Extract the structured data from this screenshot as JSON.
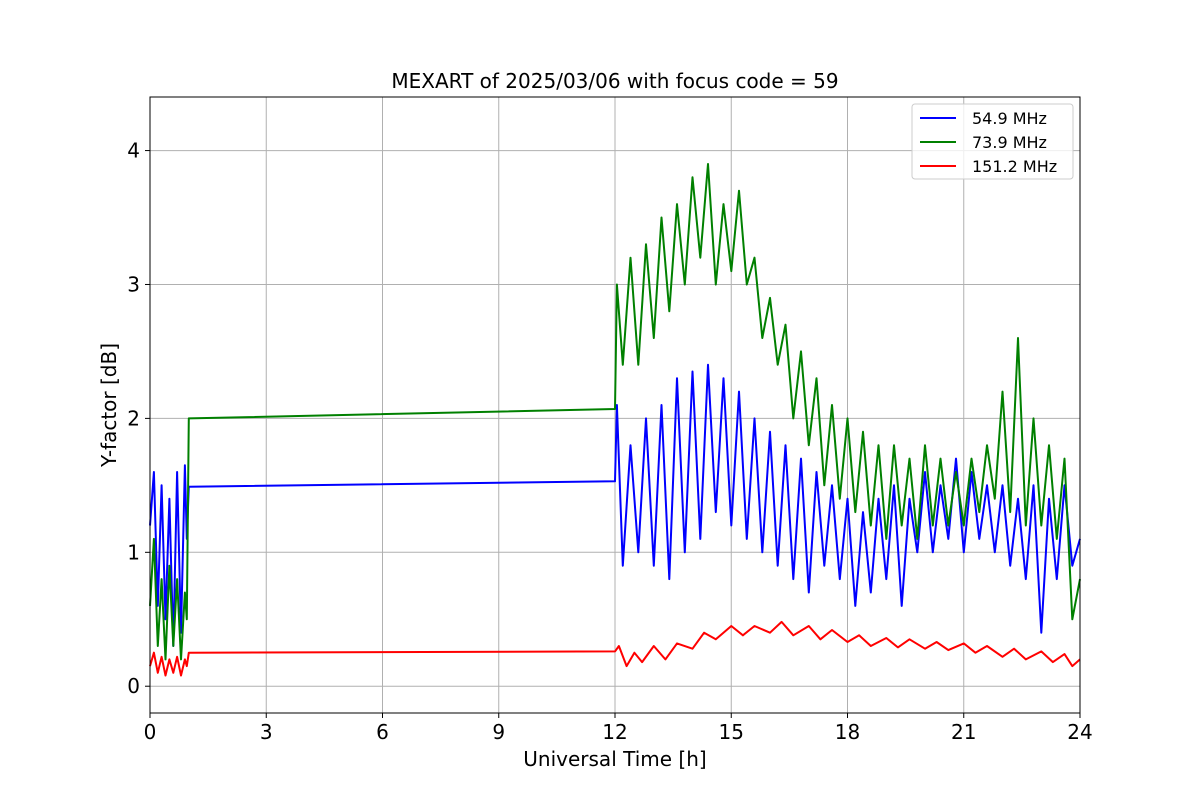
{
  "chart_data": {
    "type": "line",
    "title": "MEXART of 2025/03/06 with focus code = 59",
    "xlabel": "Universal Time [h]",
    "ylabel": "Y-factor [dB]",
    "xlim": [
      0,
      24
    ],
    "ylim": [
      -0.2,
      4.4
    ],
    "xticks": [
      0,
      3,
      6,
      9,
      12,
      15,
      18,
      21,
      24
    ],
    "yticks": [
      0,
      1,
      2,
      3,
      4
    ],
    "grid": true,
    "legend_position": "top-right",
    "series": [
      {
        "name": "54.9 MHz",
        "color": "#0000ff",
        "points": [
          [
            0.0,
            1.2
          ],
          [
            0.1,
            1.6
          ],
          [
            0.2,
            0.6
          ],
          [
            0.3,
            1.5
          ],
          [
            0.4,
            0.5
          ],
          [
            0.5,
            1.4
          ],
          [
            0.6,
            0.3
          ],
          [
            0.7,
            1.6
          ],
          [
            0.8,
            0.4
          ],
          [
            0.9,
            1.65
          ],
          [
            0.95,
            1.1
          ],
          [
            1.0,
            1.49
          ],
          [
            12.0,
            1.53
          ],
          [
            12.05,
            2.1
          ],
          [
            12.2,
            0.9
          ],
          [
            12.4,
            1.8
          ],
          [
            12.6,
            1.0
          ],
          [
            12.8,
            2.0
          ],
          [
            13.0,
            0.9
          ],
          [
            13.2,
            2.1
          ],
          [
            13.4,
            0.8
          ],
          [
            13.6,
            2.3
          ],
          [
            13.8,
            1.0
          ],
          [
            14.0,
            2.35
          ],
          [
            14.2,
            1.1
          ],
          [
            14.4,
            2.4
          ],
          [
            14.6,
            1.3
          ],
          [
            14.8,
            2.3
          ],
          [
            15.0,
            1.2
          ],
          [
            15.2,
            2.2
          ],
          [
            15.4,
            1.1
          ],
          [
            15.6,
            2.0
          ],
          [
            15.8,
            1.0
          ],
          [
            16.0,
            1.9
          ],
          [
            16.2,
            0.9
          ],
          [
            16.4,
            1.8
          ],
          [
            16.6,
            0.8
          ],
          [
            16.8,
            1.7
          ],
          [
            17.0,
            0.7
          ],
          [
            17.2,
            1.6
          ],
          [
            17.4,
            0.9
          ],
          [
            17.6,
            1.5
          ],
          [
            17.8,
            0.8
          ],
          [
            18.0,
            1.4
          ],
          [
            18.2,
            0.6
          ],
          [
            18.4,
            1.3
          ],
          [
            18.6,
            0.7
          ],
          [
            18.8,
            1.4
          ],
          [
            19.0,
            0.8
          ],
          [
            19.2,
            1.5
          ],
          [
            19.4,
            0.6
          ],
          [
            19.6,
            1.4
          ],
          [
            19.8,
            1.0
          ],
          [
            20.0,
            1.6
          ],
          [
            20.2,
            1.0
          ],
          [
            20.4,
            1.5
          ],
          [
            20.6,
            1.1
          ],
          [
            20.8,
            1.7
          ],
          [
            21.0,
            1.0
          ],
          [
            21.2,
            1.6
          ],
          [
            21.4,
            1.1
          ],
          [
            21.6,
            1.5
          ],
          [
            21.8,
            1.0
          ],
          [
            22.0,
            1.5
          ],
          [
            22.2,
            0.9
          ],
          [
            22.4,
            1.4
          ],
          [
            22.6,
            0.8
          ],
          [
            22.8,
            1.5
          ],
          [
            23.0,
            0.4
          ],
          [
            23.2,
            1.4
          ],
          [
            23.4,
            0.8
          ],
          [
            23.6,
            1.5
          ],
          [
            23.8,
            0.9
          ],
          [
            24.0,
            1.1
          ]
        ]
      },
      {
        "name": "73.9 MHz",
        "color": "#008000",
        "points": [
          [
            0.0,
            0.6
          ],
          [
            0.1,
            1.1
          ],
          [
            0.2,
            0.3
          ],
          [
            0.3,
            0.8
          ],
          [
            0.4,
            0.2
          ],
          [
            0.5,
            0.9
          ],
          [
            0.6,
            0.3
          ],
          [
            0.7,
            0.8
          ],
          [
            0.8,
            0.2
          ],
          [
            0.9,
            0.7
          ],
          [
            0.95,
            0.5
          ],
          [
            1.0,
            2.0
          ],
          [
            12.0,
            2.07
          ],
          [
            12.05,
            3.0
          ],
          [
            12.2,
            2.4
          ],
          [
            12.4,
            3.2
          ],
          [
            12.6,
            2.4
          ],
          [
            12.8,
            3.3
          ],
          [
            13.0,
            2.6
          ],
          [
            13.2,
            3.5
          ],
          [
            13.4,
            2.8
          ],
          [
            13.6,
            3.6
          ],
          [
            13.8,
            3.0
          ],
          [
            14.0,
            3.8
          ],
          [
            14.2,
            3.2
          ],
          [
            14.4,
            3.9
          ],
          [
            14.6,
            3.0
          ],
          [
            14.8,
            3.6
          ],
          [
            15.0,
            3.1
          ],
          [
            15.2,
            3.7
          ],
          [
            15.4,
            3.0
          ],
          [
            15.6,
            3.2
          ],
          [
            15.8,
            2.6
          ],
          [
            16.0,
            2.9
          ],
          [
            16.2,
            2.4
          ],
          [
            16.4,
            2.7
          ],
          [
            16.6,
            2.0
          ],
          [
            16.8,
            2.5
          ],
          [
            17.0,
            1.8
          ],
          [
            17.2,
            2.3
          ],
          [
            17.4,
            1.5
          ],
          [
            17.6,
            2.1
          ],
          [
            17.8,
            1.4
          ],
          [
            18.0,
            2.0
          ],
          [
            18.2,
            1.3
          ],
          [
            18.4,
            1.9
          ],
          [
            18.6,
            1.2
          ],
          [
            18.8,
            1.8
          ],
          [
            19.0,
            1.1
          ],
          [
            19.2,
            1.8
          ],
          [
            19.4,
            1.2
          ],
          [
            19.6,
            1.7
          ],
          [
            19.8,
            1.1
          ],
          [
            20.0,
            1.8
          ],
          [
            20.2,
            1.2
          ],
          [
            20.4,
            1.7
          ],
          [
            20.6,
            1.2
          ],
          [
            20.8,
            1.6
          ],
          [
            21.0,
            1.2
          ],
          [
            21.2,
            1.7
          ],
          [
            21.4,
            1.3
          ],
          [
            21.6,
            1.8
          ],
          [
            21.8,
            1.4
          ],
          [
            22.0,
            2.2
          ],
          [
            22.2,
            1.3
          ],
          [
            22.4,
            2.6
          ],
          [
            22.6,
            1.2
          ],
          [
            22.8,
            2.0
          ],
          [
            23.0,
            1.2
          ],
          [
            23.2,
            1.8
          ],
          [
            23.4,
            1.1
          ],
          [
            23.6,
            1.7
          ],
          [
            23.8,
            0.5
          ],
          [
            24.0,
            0.8
          ]
        ]
      },
      {
        "name": "151.2 MHz",
        "color": "#ff0000",
        "points": [
          [
            0.0,
            0.15
          ],
          [
            0.1,
            0.25
          ],
          [
            0.2,
            0.1
          ],
          [
            0.3,
            0.22
          ],
          [
            0.4,
            0.08
          ],
          [
            0.5,
            0.2
          ],
          [
            0.6,
            0.1
          ],
          [
            0.7,
            0.22
          ],
          [
            0.8,
            0.08
          ],
          [
            0.9,
            0.2
          ],
          [
            0.95,
            0.15
          ],
          [
            1.0,
            0.25
          ],
          [
            12.0,
            0.26
          ],
          [
            12.1,
            0.3
          ],
          [
            12.3,
            0.15
          ],
          [
            12.5,
            0.25
          ],
          [
            12.7,
            0.18
          ],
          [
            13.0,
            0.3
          ],
          [
            13.3,
            0.2
          ],
          [
            13.6,
            0.32
          ],
          [
            14.0,
            0.28
          ],
          [
            14.3,
            0.4
          ],
          [
            14.6,
            0.35
          ],
          [
            15.0,
            0.45
          ],
          [
            15.3,
            0.38
          ],
          [
            15.6,
            0.45
          ],
          [
            16.0,
            0.4
          ],
          [
            16.3,
            0.48
          ],
          [
            16.6,
            0.38
          ],
          [
            17.0,
            0.45
          ],
          [
            17.3,
            0.35
          ],
          [
            17.6,
            0.42
          ],
          [
            18.0,
            0.33
          ],
          [
            18.3,
            0.38
          ],
          [
            18.6,
            0.3
          ],
          [
            19.0,
            0.36
          ],
          [
            19.3,
            0.29
          ],
          [
            19.6,
            0.35
          ],
          [
            20.0,
            0.28
          ],
          [
            20.3,
            0.33
          ],
          [
            20.6,
            0.27
          ],
          [
            21.0,
            0.32
          ],
          [
            21.3,
            0.25
          ],
          [
            21.6,
            0.3
          ],
          [
            22.0,
            0.22
          ],
          [
            22.3,
            0.28
          ],
          [
            22.6,
            0.2
          ],
          [
            23.0,
            0.26
          ],
          [
            23.3,
            0.18
          ],
          [
            23.6,
            0.24
          ],
          [
            23.8,
            0.15
          ],
          [
            24.0,
            0.2
          ]
        ]
      }
    ]
  }
}
